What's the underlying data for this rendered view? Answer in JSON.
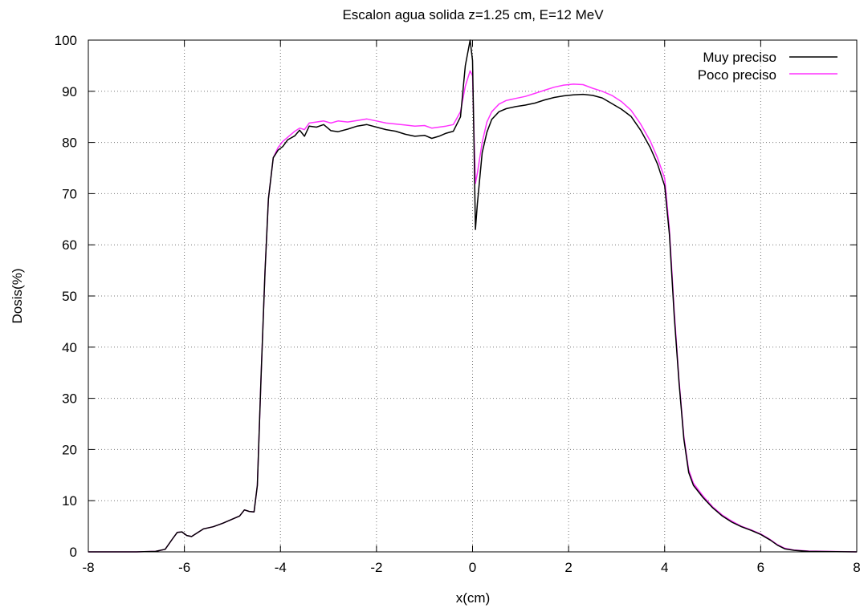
{
  "chart_data": {
    "type": "line",
    "title": "Escalon agua solida z=1.25 cm, E=12 MeV",
    "xlabel": "x(cm)",
    "ylabel": "Dosis(%)",
    "xlim": [
      -8,
      8
    ],
    "ylim": [
      0,
      100
    ],
    "xticks": [
      -8,
      -6,
      -4,
      -2,
      0,
      2,
      4,
      6,
      8
    ],
    "yticks": [
      0,
      10,
      20,
      30,
      40,
      50,
      60,
      70,
      80,
      90,
      100
    ],
    "grid": true,
    "legend_position": "top-right",
    "series": [
      {
        "name": "Muy preciso",
        "color": "#000000",
        "points": [
          [
            -8,
            0
          ],
          [
            -7,
            0
          ],
          [
            -6.6,
            0.1
          ],
          [
            -6.4,
            0.5
          ],
          [
            -6.25,
            2.5
          ],
          [
            -6.15,
            3.8
          ],
          [
            -6.05,
            3.9
          ],
          [
            -5.95,
            3.2
          ],
          [
            -5.85,
            3.0
          ],
          [
            -5.75,
            3.6
          ],
          [
            -5.6,
            4.5
          ],
          [
            -5.4,
            4.9
          ],
          [
            -5.2,
            5.6
          ],
          [
            -5,
            6.4
          ],
          [
            -4.85,
            7.0
          ],
          [
            -4.75,
            8.2
          ],
          [
            -4.65,
            7.9
          ],
          [
            -4.55,
            7.8
          ],
          [
            -4.48,
            13
          ],
          [
            -4.4,
            35
          ],
          [
            -4.32,
            55
          ],
          [
            -4.25,
            69
          ],
          [
            -4.15,
            77
          ],
          [
            -4.05,
            78.5
          ],
          [
            -3.95,
            79.2
          ],
          [
            -3.85,
            80.5
          ],
          [
            -3.7,
            81.3
          ],
          [
            -3.6,
            82.4
          ],
          [
            -3.5,
            81.2
          ],
          [
            -3.4,
            83.2
          ],
          [
            -3.25,
            83.0
          ],
          [
            -3.1,
            83.5
          ],
          [
            -2.95,
            82.3
          ],
          [
            -2.8,
            82.1
          ],
          [
            -2.6,
            82.6
          ],
          [
            -2.4,
            83.2
          ],
          [
            -2.2,
            83.5
          ],
          [
            -2.0,
            83.0
          ],
          [
            -1.8,
            82.5
          ],
          [
            -1.6,
            82.2
          ],
          [
            -1.4,
            81.6
          ],
          [
            -1.2,
            81.2
          ],
          [
            -1.0,
            81.4
          ],
          [
            -0.85,
            80.8
          ],
          [
            -0.7,
            81.2
          ],
          [
            -0.55,
            81.8
          ],
          [
            -0.4,
            82.2
          ],
          [
            -0.25,
            85
          ],
          [
            -0.15,
            95
          ],
          [
            -0.05,
            100
          ],
          [
            0.0,
            96
          ],
          [
            0.03,
            80
          ],
          [
            0.06,
            63
          ],
          [
            0.1,
            68
          ],
          [
            0.2,
            78
          ],
          [
            0.3,
            82
          ],
          [
            0.4,
            84.5
          ],
          [
            0.55,
            86
          ],
          [
            0.7,
            86.6
          ],
          [
            0.9,
            87
          ],
          [
            1.1,
            87.3
          ],
          [
            1.3,
            87.7
          ],
          [
            1.5,
            88.3
          ],
          [
            1.7,
            88.8
          ],
          [
            1.9,
            89.1
          ],
          [
            2.1,
            89.3
          ],
          [
            2.3,
            89.4
          ],
          [
            2.5,
            89.2
          ],
          [
            2.7,
            88.7
          ],
          [
            2.9,
            87.6
          ],
          [
            3.1,
            86.5
          ],
          [
            3.3,
            85.1
          ],
          [
            3.5,
            82.4
          ],
          [
            3.7,
            79.0
          ],
          [
            3.85,
            75.8
          ],
          [
            4.0,
            71.5
          ],
          [
            4.1,
            62
          ],
          [
            4.2,
            46
          ],
          [
            4.3,
            33
          ],
          [
            4.4,
            22
          ],
          [
            4.5,
            15.5
          ],
          [
            4.6,
            13
          ],
          [
            4.8,
            10.6
          ],
          [
            5.0,
            8.6
          ],
          [
            5.2,
            7.0
          ],
          [
            5.4,
            5.8
          ],
          [
            5.6,
            4.9
          ],
          [
            5.8,
            4.2
          ],
          [
            6.0,
            3.4
          ],
          [
            6.2,
            2.3
          ],
          [
            6.35,
            1.3
          ],
          [
            6.5,
            0.6
          ],
          [
            6.7,
            0.3
          ],
          [
            7.0,
            0.1
          ],
          [
            8,
            0
          ]
        ]
      },
      {
        "name": "Poco preciso",
        "color": "#ff33ff",
        "points": [
          [
            -8,
            0
          ],
          [
            -7,
            0
          ],
          [
            -6.6,
            0.1
          ],
          [
            -6.4,
            0.5
          ],
          [
            -6.25,
            2.5
          ],
          [
            -6.15,
            3.8
          ],
          [
            -6.05,
            3.9
          ],
          [
            -5.95,
            3.2
          ],
          [
            -5.85,
            3.0
          ],
          [
            -5.75,
            3.6
          ],
          [
            -5.6,
            4.5
          ],
          [
            -5.4,
            4.9
          ],
          [
            -5.2,
            5.6
          ],
          [
            -5,
            6.4
          ],
          [
            -4.85,
            7.0
          ],
          [
            -4.75,
            8.2
          ],
          [
            -4.65,
            7.9
          ],
          [
            -4.55,
            7.8
          ],
          [
            -4.48,
            13
          ],
          [
            -4.4,
            35
          ],
          [
            -4.32,
            55
          ],
          [
            -4.25,
            69
          ],
          [
            -4.15,
            77
          ],
          [
            -4.05,
            79
          ],
          [
            -3.95,
            80.2
          ],
          [
            -3.85,
            81
          ],
          [
            -3.7,
            82.2
          ],
          [
            -3.6,
            82.8
          ],
          [
            -3.5,
            82.5
          ],
          [
            -3.4,
            83.8
          ],
          [
            -3.25,
            84.0
          ],
          [
            -3.1,
            84.2
          ],
          [
            -2.95,
            83.8
          ],
          [
            -2.8,
            84.2
          ],
          [
            -2.6,
            84.0
          ],
          [
            -2.4,
            84.3
          ],
          [
            -2.2,
            84.6
          ],
          [
            -2.0,
            84.2
          ],
          [
            -1.8,
            83.8
          ],
          [
            -1.6,
            83.6
          ],
          [
            -1.4,
            83.4
          ],
          [
            -1.2,
            83.2
          ],
          [
            -1.0,
            83.3
          ],
          [
            -0.85,
            82.8
          ],
          [
            -0.7,
            83.0
          ],
          [
            -0.55,
            83.2
          ],
          [
            -0.4,
            83.5
          ],
          [
            -0.25,
            86
          ],
          [
            -0.15,
            91
          ],
          [
            -0.05,
            94
          ],
          [
            0.0,
            93
          ],
          [
            0.03,
            82
          ],
          [
            0.06,
            72
          ],
          [
            0.1,
            74
          ],
          [
            0.2,
            80
          ],
          [
            0.3,
            84
          ],
          [
            0.4,
            86
          ],
          [
            0.55,
            87.5
          ],
          [
            0.7,
            88.2
          ],
          [
            0.9,
            88.6
          ],
          [
            1.1,
            89.0
          ],
          [
            1.3,
            89.6
          ],
          [
            1.5,
            90.2
          ],
          [
            1.7,
            90.8
          ],
          [
            1.9,
            91.2
          ],
          [
            2.1,
            91.4
          ],
          [
            2.3,
            91.3
          ],
          [
            2.5,
            90.6
          ],
          [
            2.7,
            90.0
          ],
          [
            2.9,
            89.2
          ],
          [
            3.1,
            88.0
          ],
          [
            3.3,
            86.3
          ],
          [
            3.5,
            83.6
          ],
          [
            3.7,
            80.3
          ],
          [
            3.85,
            77.0
          ],
          [
            4.0,
            73.0
          ],
          [
            4.1,
            63
          ],
          [
            4.2,
            47
          ],
          [
            4.3,
            33.5
          ],
          [
            4.4,
            22.5
          ],
          [
            4.5,
            16
          ],
          [
            4.6,
            13.4
          ],
          [
            4.8,
            10.9
          ],
          [
            5.0,
            8.8
          ],
          [
            5.2,
            7.2
          ],
          [
            5.4,
            6.0
          ],
          [
            5.6,
            5.0
          ],
          [
            5.8,
            4.3
          ],
          [
            6.0,
            3.5
          ],
          [
            6.2,
            2.4
          ],
          [
            6.35,
            1.4
          ],
          [
            6.5,
            0.7
          ],
          [
            6.7,
            0.35
          ],
          [
            7.0,
            0.15
          ],
          [
            8,
            0
          ]
        ]
      }
    ]
  }
}
